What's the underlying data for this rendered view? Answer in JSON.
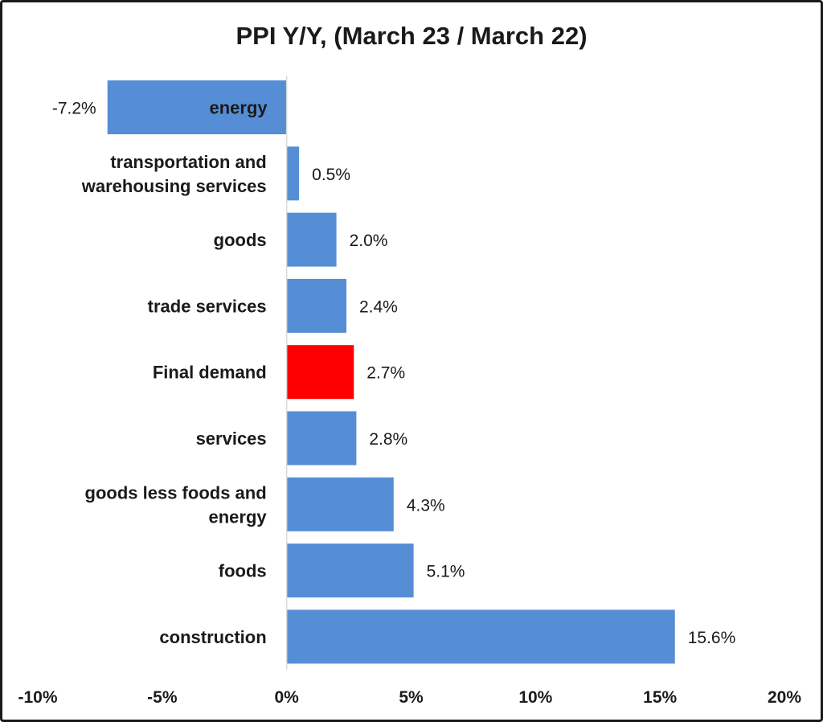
{
  "chart_data": {
    "type": "bar",
    "orientation": "horizontal",
    "title": "PPI Y/Y, (March 23 / March 22)",
    "xlabel": "",
    "ylabel": "",
    "xlim": [
      -10,
      20
    ],
    "grid": false,
    "legend": "none",
    "x_ticks": [
      "-10%",
      "-5%",
      "0%",
      "5%",
      "10%",
      "15%",
      "20%"
    ],
    "x_tick_values": [
      -10,
      -5,
      0,
      5,
      10,
      15,
      20
    ],
    "categories": [
      [
        "energy"
      ],
      [
        "transportation and",
        "warehousing services"
      ],
      [
        "goods"
      ],
      [
        "trade services"
      ],
      [
        "Final demand"
      ],
      [
        "services"
      ],
      [
        "goods less foods and",
        "energy"
      ],
      [
        "foods"
      ],
      [
        "construction"
      ]
    ],
    "values": [
      -7.2,
      0.5,
      2.0,
      2.4,
      2.7,
      2.8,
      4.3,
      5.1,
      15.6
    ],
    "labels": [
      "-7.2%",
      "0.5%",
      "2.0%",
      "2.4%",
      "2.7%",
      "2.8%",
      "4.3%",
      "5.1%",
      "15.6%"
    ],
    "highlight_index": 4,
    "colors": {
      "bar": "#558ed5",
      "highlight": "#ff0000",
      "axis": "#d9d9d9"
    }
  }
}
